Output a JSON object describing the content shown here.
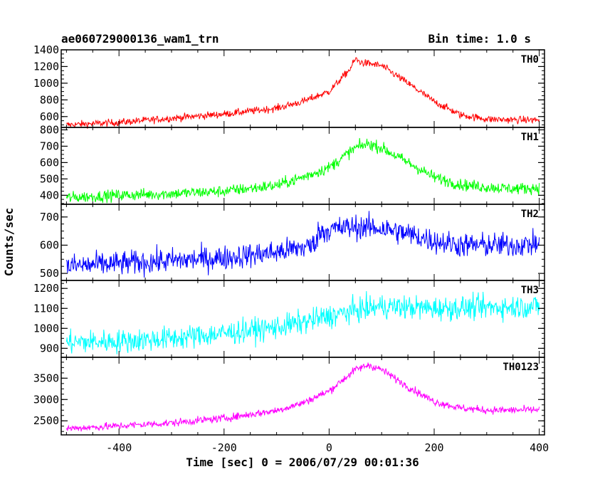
{
  "header": {
    "title": "ae060729000136_wam1_trn",
    "bin_time": "Bin time: 1.0 s"
  },
  "chart_data": {
    "type": "line",
    "xlabel": "Time [sec] 0 = 2006/07/29 00:01:36",
    "ylabel": "Counts/sec",
    "xlim": [
      -510,
      410
    ],
    "x_ticks": [
      -400,
      -200,
      0,
      200,
      400
    ],
    "grid": false,
    "panels": [
      {
        "name": "TH0",
        "color": "#ff0000",
        "ylim": [
          470,
          1400
        ],
        "y_ticks": [
          600,
          800,
          1000,
          1200,
          1400
        ],
        "noise": 22,
        "profile": {
          "x": [
            -500,
            -400,
            -300,
            -200,
            -100,
            -50,
            0,
            40,
            50,
            60,
            100,
            150,
            200,
            250,
            300,
            350,
            400
          ],
          "y": [
            500,
            530,
            580,
            630,
            700,
            780,
            900,
            1170,
            1290,
            1250,
            1210,
            1000,
            780,
            620,
            570,
            560,
            560
          ]
        }
      },
      {
        "name": "TH1",
        "color": "#00ff00",
        "ylim": [
          345,
          815
        ],
        "y_ticks": [
          400,
          500,
          600,
          700,
          800
        ],
        "noise": 18,
        "profile": {
          "x": [
            -500,
            -400,
            -300,
            -200,
            -100,
            -50,
            0,
            50,
            75,
            100,
            150,
            200,
            250,
            300,
            350,
            400
          ],
          "y": [
            385,
            400,
            410,
            425,
            460,
            510,
            570,
            690,
            715,
            690,
            600,
            510,
            465,
            450,
            440,
            445
          ]
        }
      },
      {
        "name": "TH2",
        "color": "#0000ff",
        "ylim": [
          475,
          745
        ],
        "y_ticks": [
          500,
          600,
          700
        ],
        "noise": 22,
        "profile": {
          "x": [
            -500,
            -400,
            -300,
            -200,
            -100,
            -30,
            -20,
            0,
            50,
            100,
            150,
            200,
            250,
            300,
            350,
            400
          ],
          "y": [
            525,
            535,
            545,
            555,
            575,
            600,
            645,
            655,
            665,
            660,
            640,
            615,
            600,
            600,
            600,
            605
          ]
        }
      },
      {
        "name": "TH3",
        "color": "#00ffff",
        "ylim": [
          855,
          1240
        ],
        "y_ticks": [
          900,
          1000,
          1100,
          1200
        ],
        "noise": 30,
        "profile": {
          "x": [
            -500,
            -400,
            -300,
            -200,
            -100,
            -50,
            0,
            50,
            100,
            200,
            300,
            400
          ],
          "y": [
            930,
            935,
            950,
            975,
            1005,
            1030,
            1060,
            1090,
            1110,
            1100,
            1105,
            1110
          ]
        }
      },
      {
        "name": "TH0123",
        "color": "#ff00ff",
        "ylim": [
          2170,
          3990
        ],
        "y_ticks": [
          2500,
          3000,
          3500
        ],
        "noise": 45,
        "profile": {
          "x": [
            -500,
            -400,
            -300,
            -200,
            -100,
            -50,
            0,
            50,
            75,
            100,
            150,
            200,
            250,
            300,
            350,
            400
          ],
          "y": [
            2320,
            2380,
            2450,
            2560,
            2740,
            2920,
            3200,
            3700,
            3810,
            3700,
            3300,
            2950,
            2800,
            2750,
            2750,
            2760
          ]
        }
      }
    ]
  }
}
